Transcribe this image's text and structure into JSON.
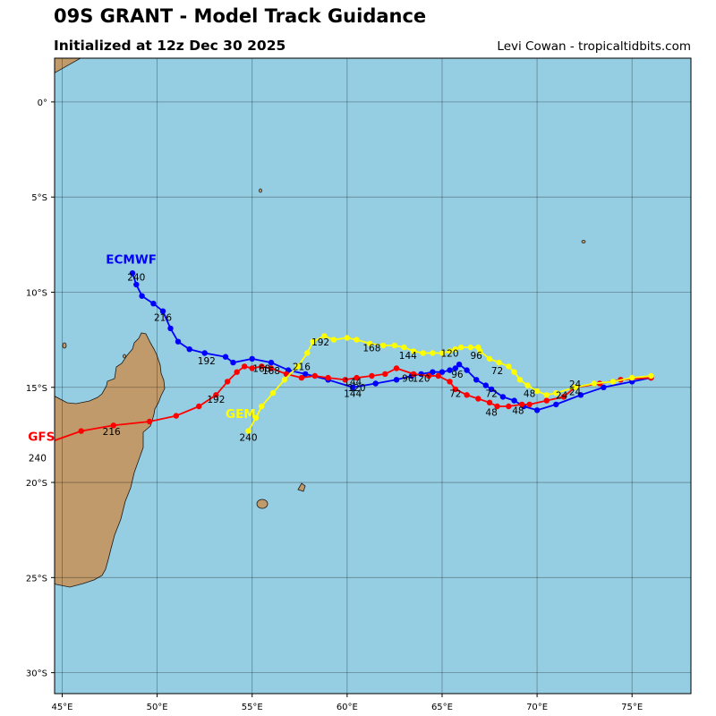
{
  "header": {
    "title": "09S GRANT - Model Track Guidance",
    "subtitle": "Initialized at 12z Dec 30 2025",
    "credit": "Levi Cowan - tropicaltidbits.com"
  },
  "map": {
    "lon_range": [
      44.6,
      78.1
    ],
    "lat_range": [
      -31.1,
      2.3
    ],
    "lon_ticks": [
      "45°E",
      "50°E",
      "55°E",
      "60°E",
      "65°E",
      "70°E",
      "75°E"
    ],
    "lat_ticks": [
      "0°",
      "5°S",
      "10°S",
      "15°S",
      "20°S",
      "25°S",
      "30°S"
    ],
    "ocean_color": "#95cde2",
    "land_color": "#c09a6b",
    "grid": true
  },
  "chart_data": {
    "type": "map-tracks",
    "series": [
      {
        "name": "ECMWF",
        "color": "#0000ff",
        "points": [
          [
            76.0,
            -14.5
          ],
          [
            75.0,
            -14.7
          ],
          [
            73.5,
            -15.0
          ],
          [
            72.3,
            -15.4
          ],
          [
            71.0,
            -15.9
          ],
          [
            70.0,
            -16.2
          ],
          [
            69.3,
            -16.0
          ],
          [
            68.8,
            -15.7
          ],
          [
            68.2,
            -15.5
          ],
          [
            67.6,
            -15.1
          ],
          [
            67.3,
            -14.9
          ],
          [
            66.8,
            -14.6
          ],
          [
            66.3,
            -14.1
          ],
          [
            65.9,
            -13.8
          ],
          [
            65.7,
            -14.0
          ],
          [
            65.4,
            -14.1
          ],
          [
            65.0,
            -14.2
          ],
          [
            64.5,
            -14.2
          ],
          [
            63.9,
            -14.3
          ],
          [
            63.4,
            -14.4
          ],
          [
            62.6,
            -14.6
          ],
          [
            61.5,
            -14.8
          ],
          [
            60.3,
            -15.0
          ],
          [
            59.0,
            -14.6
          ],
          [
            57.8,
            -14.3
          ],
          [
            56.9,
            -14.1
          ],
          [
            56.0,
            -13.7
          ],
          [
            55.0,
            -13.5
          ],
          [
            54.0,
            -13.7
          ],
          [
            53.6,
            -13.4
          ],
          [
            52.5,
            -13.2
          ],
          [
            51.7,
            -13.0
          ],
          [
            51.1,
            -12.6
          ],
          [
            50.7,
            -11.9
          ],
          [
            50.3,
            -11.0
          ],
          [
            49.8,
            -10.6
          ],
          [
            49.2,
            -10.2
          ],
          [
            48.9,
            -9.6
          ],
          [
            48.7,
            -9.0
          ]
        ],
        "labels": [
          [
            "24",
            71.3,
            -15.6
          ],
          [
            "48",
            69.0,
            -16.4
          ],
          [
            "72",
            67.6,
            -15.5
          ],
          [
            "96",
            65.8,
            -14.5
          ],
          [
            "120",
            60.5,
            -15.2
          ],
          [
            "144",
            60.3,
            -15.5
          ],
          [
            "168",
            56.0,
            -14.3
          ],
          [
            "192",
            52.6,
            -13.8
          ],
          [
            "216",
            50.3,
            -11.5
          ],
          [
            "240",
            48.9,
            -9.4
          ]
        ],
        "label": {
          "text": "ECMWF",
          "at": [
            47.3,
            -8.5
          ]
        }
      },
      {
        "name": "GFS",
        "color": "#ff0000",
        "points": [
          [
            76.0,
            -14.5
          ],
          [
            74.4,
            -14.6
          ],
          [
            73.3,
            -14.8
          ],
          [
            72.0,
            -15.0
          ],
          [
            71.4,
            -15.5
          ],
          [
            70.5,
            -15.7
          ],
          [
            69.6,
            -15.9
          ],
          [
            69.2,
            -15.9
          ],
          [
            68.5,
            -16.0
          ],
          [
            67.9,
            -16.0
          ],
          [
            67.5,
            -15.8
          ],
          [
            66.9,
            -15.6
          ],
          [
            66.3,
            -15.4
          ],
          [
            65.7,
            -15.1
          ],
          [
            65.4,
            -14.7
          ],
          [
            64.8,
            -14.4
          ],
          [
            64.3,
            -14.4
          ],
          [
            63.5,
            -14.3
          ],
          [
            62.6,
            -14.0
          ],
          [
            62.0,
            -14.3
          ],
          [
            61.3,
            -14.4
          ],
          [
            60.5,
            -14.5
          ],
          [
            59.9,
            -14.6
          ],
          [
            59.0,
            -14.5
          ],
          [
            58.3,
            -14.4
          ],
          [
            57.6,
            -14.5
          ],
          [
            56.8,
            -14.3
          ],
          [
            56.0,
            -14.0
          ],
          [
            55.5,
            -13.9
          ],
          [
            55.0,
            -14.0
          ],
          [
            54.6,
            -13.9
          ],
          [
            54.2,
            -14.2
          ],
          [
            53.7,
            -14.7
          ],
          [
            53.1,
            -15.4
          ],
          [
            52.2,
            -16.0
          ],
          [
            51.0,
            -16.5
          ],
          [
            49.6,
            -16.8
          ],
          [
            47.7,
            -17.0
          ],
          [
            46.0,
            -17.3
          ],
          [
            44.3,
            -17.9
          ]
        ],
        "labels": [
          [
            "24",
            72.0,
            -15.4
          ],
          [
            "48",
            67.6,
            -16.5
          ],
          [
            "72",
            65.7,
            -15.5
          ],
          [
            "96",
            63.2,
            -14.7
          ],
          [
            "120",
            63.9,
            -14.7
          ],
          [
            "144",
            60.3,
            -14.9
          ],
          [
            "168",
            55.5,
            -14.2
          ],
          [
            "192",
            53.1,
            -15.8
          ],
          [
            "216",
            47.6,
            -17.5
          ],
          [
            "240",
            43.7,
            -18.9
          ]
        ],
        "label": {
          "text": "GFS",
          "at": [
            43.2,
            -17.8
          ]
        }
      },
      {
        "name": "GEM",
        "color": "#ffff00",
        "points": [
          [
            76.0,
            -14.4
          ],
          [
            75.0,
            -14.5
          ],
          [
            74.0,
            -14.7
          ],
          [
            73.0,
            -14.8
          ],
          [
            72.0,
            -15.0
          ],
          [
            71.0,
            -15.3
          ],
          [
            70.5,
            -15.4
          ],
          [
            70.0,
            -15.2
          ],
          [
            69.5,
            -14.9
          ],
          [
            69.1,
            -14.6
          ],
          [
            68.8,
            -14.2
          ],
          [
            68.5,
            -13.9
          ],
          [
            68.0,
            -13.7
          ],
          [
            67.5,
            -13.5
          ],
          [
            67.0,
            -13.1
          ],
          [
            66.9,
            -12.9
          ],
          [
            66.5,
            -12.9
          ],
          [
            66.0,
            -12.9
          ],
          [
            65.7,
            -13.0
          ],
          [
            65.4,
            -13.1
          ],
          [
            65.0,
            -13.2
          ],
          [
            64.5,
            -13.2
          ],
          [
            64.0,
            -13.2
          ],
          [
            63.5,
            -13.1
          ],
          [
            63.0,
            -12.9
          ],
          [
            62.5,
            -12.8
          ],
          [
            61.9,
            -12.8
          ],
          [
            61.2,
            -12.7
          ],
          [
            60.5,
            -12.5
          ],
          [
            60.0,
            -12.4
          ],
          [
            59.3,
            -12.5
          ],
          [
            58.8,
            -12.3
          ],
          [
            58.2,
            -12.6
          ],
          [
            57.9,
            -13.2
          ],
          [
            57.4,
            -13.9
          ],
          [
            56.7,
            -14.6
          ],
          [
            56.1,
            -15.3
          ],
          [
            55.5,
            -16.0
          ],
          [
            55.2,
            -16.6
          ],
          [
            54.8,
            -17.3
          ]
        ],
        "labels": [
          [
            "24",
            72.0,
            -15.0
          ],
          [
            "48",
            69.6,
            -15.5
          ],
          [
            "72",
            67.9,
            -14.3
          ],
          [
            "96",
            66.8,
            -13.5
          ],
          [
            "120",
            65.4,
            -13.4
          ],
          [
            "144",
            63.2,
            -13.5
          ],
          [
            "168",
            61.3,
            -13.1
          ],
          [
            "192",
            58.6,
            -12.8
          ],
          [
            "216",
            57.6,
            -14.1
          ],
          [
            "240",
            54.8,
            -17.8
          ]
        ],
        "label": {
          "text": "GEM",
          "at": [
            53.6,
            -16.6
          ]
        }
      }
    ]
  }
}
